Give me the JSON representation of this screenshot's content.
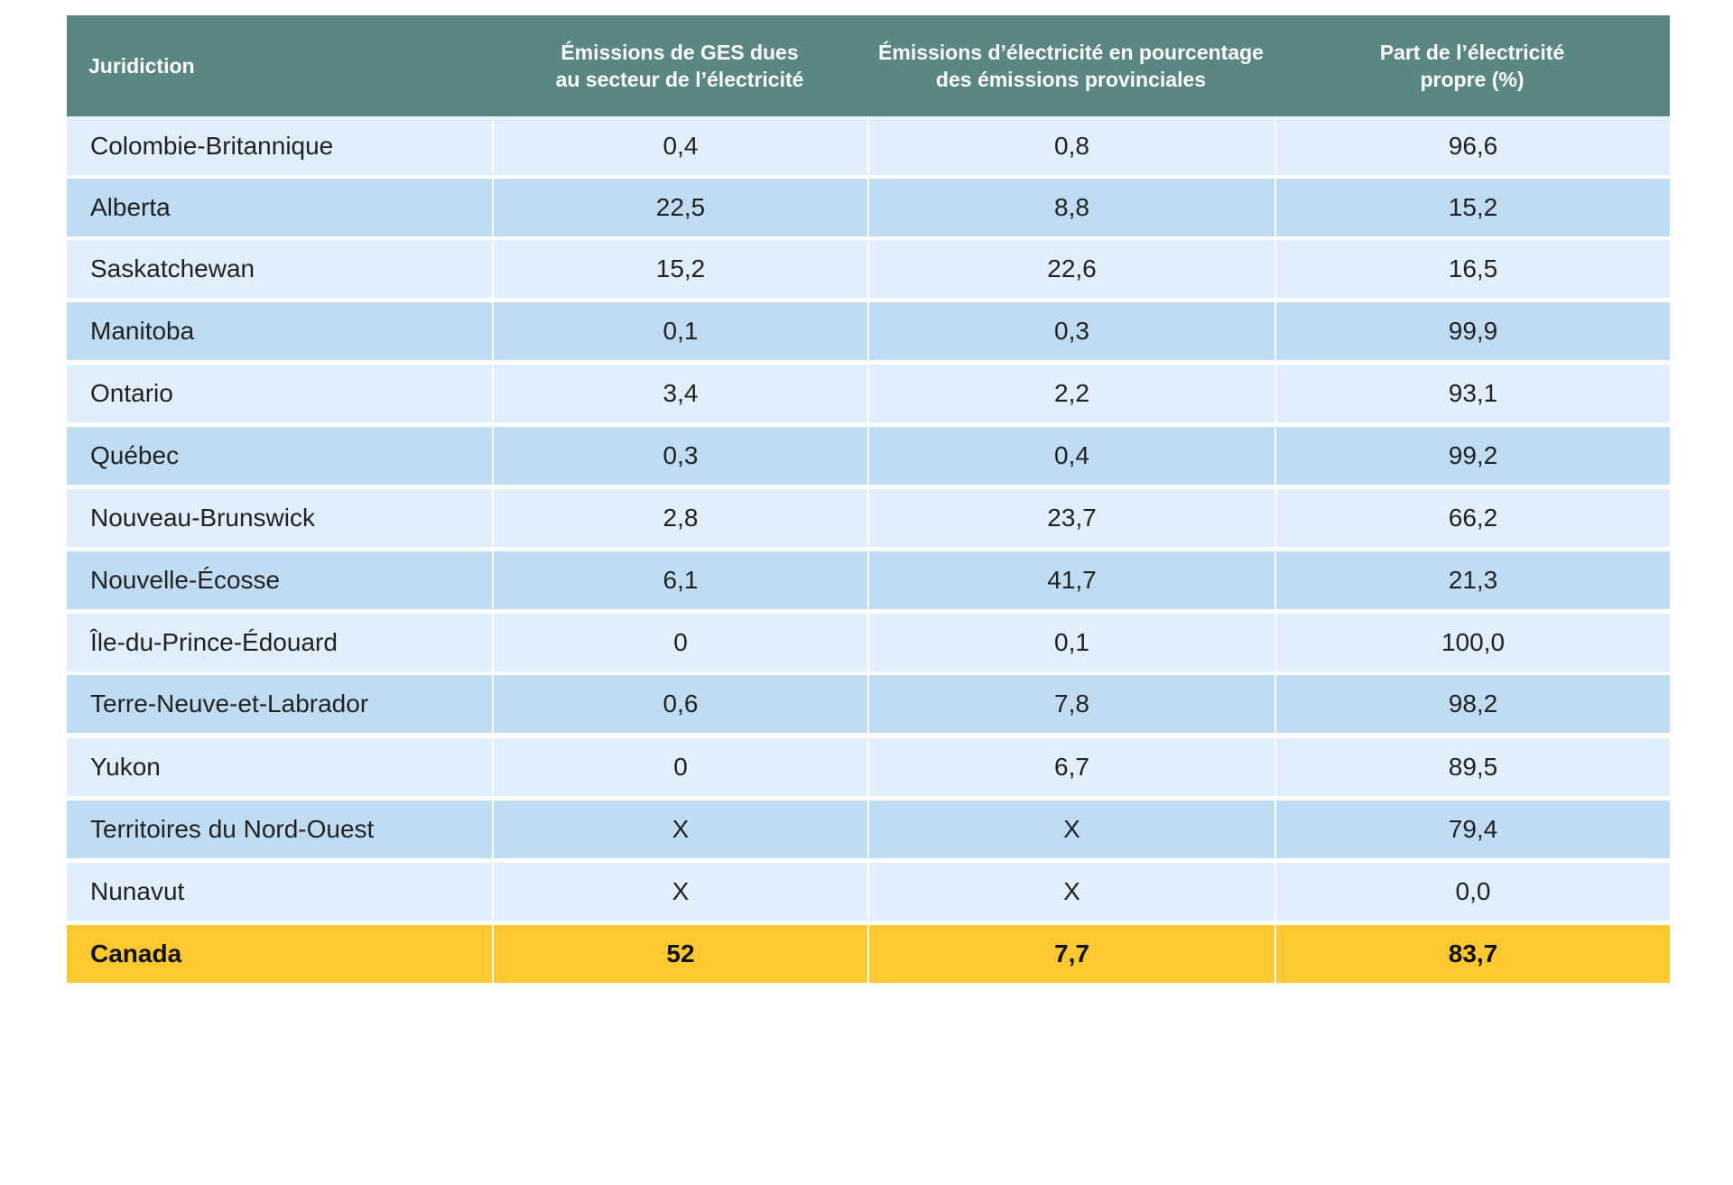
{
  "table": {
    "columns": [
      {
        "line1": "Juridiction",
        "line2": ""
      },
      {
        "line1": "Émissions de GES dues",
        "line2": "au secteur de l’électricité"
      },
      {
        "line1": "Émissions d’électricité en pourcentage",
        "line2": "des émissions provinciales"
      },
      {
        "line1": "Part de l’électricité",
        "line2": "propre (%)"
      }
    ],
    "rows": [
      {
        "jurisdiction": "Colombie-Britannique",
        "ges": "0,4",
        "pct_emissions": "0,8",
        "clean_share": "96,6"
      },
      {
        "jurisdiction": "Alberta",
        "ges": "22,5",
        "pct_emissions": "8,8",
        "clean_share": "15,2"
      },
      {
        "jurisdiction": "Saskatchewan",
        "ges": "15,2",
        "pct_emissions": "22,6",
        "clean_share": "16,5"
      },
      {
        "jurisdiction": "Manitoba",
        "ges": "0,1",
        "pct_emissions": "0,3",
        "clean_share": "99,9"
      },
      {
        "jurisdiction": "Ontario",
        "ges": "3,4",
        "pct_emissions": "2,2",
        "clean_share": "93,1"
      },
      {
        "jurisdiction": "Québec",
        "ges": "0,3",
        "pct_emissions": "0,4",
        "clean_share": "99,2"
      },
      {
        "jurisdiction": "Nouveau-Brunswick",
        "ges": "2,8",
        "pct_emissions": "23,7",
        "clean_share": "66,2"
      },
      {
        "jurisdiction": "Nouvelle-Écosse",
        "ges": "6,1",
        "pct_emissions": "41,7",
        "clean_share": "21,3"
      },
      {
        "jurisdiction": "Île-du-Prince-Édouard",
        "ges": "0",
        "pct_emissions": "0,1",
        "clean_share": "100,0"
      },
      {
        "jurisdiction": "Terre-Neuve-et-Labrador",
        "ges": "0,6",
        "pct_emissions": "7,8",
        "clean_share": "98,2"
      },
      {
        "jurisdiction": "Yukon",
        "ges": "0",
        "pct_emissions": "6,7",
        "clean_share": "89,5"
      },
      {
        "jurisdiction": "Territoires du Nord-Ouest",
        "ges": "X",
        "pct_emissions": "X",
        "clean_share": "79,4"
      },
      {
        "jurisdiction": "Nunavut",
        "ges": "X",
        "pct_emissions": "X",
        "clean_share": "0,0"
      }
    ],
    "total": {
      "jurisdiction": "Canada",
      "ges": "52",
      "pct_emissions": "7,7",
      "clean_share": "83,7"
    }
  },
  "colors": {
    "header_bg": "#5a8683",
    "row_light": "#e1eefb",
    "row_dark": "#c0dcf2",
    "total_bg": "#fdc830"
  }
}
